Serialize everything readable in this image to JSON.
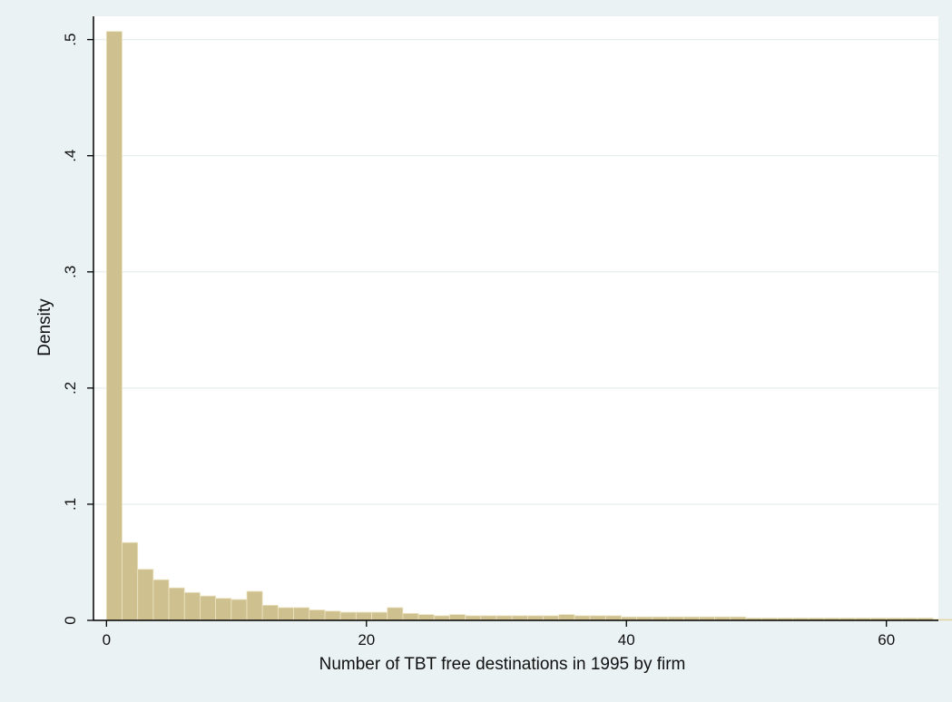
{
  "chart_data": {
    "type": "bar",
    "title": "",
    "xlabel": "Number of TBT free destinations in 1995 by firm",
    "ylabel": "Density",
    "xlim": [
      -1,
      64
    ],
    "ylim": [
      0,
      0.52
    ],
    "x_ticks": [
      {
        "value": 0,
        "label": "0"
      },
      {
        "value": 20,
        "label": "20"
      },
      {
        "value": 40,
        "label": "40"
      },
      {
        "value": 60,
        "label": "60"
      }
    ],
    "y_ticks": [
      {
        "value": 0,
        "label": "0"
      },
      {
        "value": 0.1,
        "label": ".1"
      },
      {
        "value": 0.2,
        "label": ".2"
      },
      {
        "value": 0.3,
        "label": ".3"
      },
      {
        "value": 0.4,
        "label": ".4"
      },
      {
        "value": 0.5,
        "label": ".5"
      }
    ],
    "bin_start": 0,
    "bin_width": 1.2,
    "values": [
      0.507,
      0.067,
      0.044,
      0.035,
      0.028,
      0.024,
      0.021,
      0.019,
      0.018,
      0.025,
      0.013,
      0.011,
      0.011,
      0.009,
      0.008,
      0.007,
      0.007,
      0.007,
      0.011,
      0.006,
      0.005,
      0.004,
      0.005,
      0.004,
      0.004,
      0.004,
      0.004,
      0.004,
      0.004,
      0.005,
      0.004,
      0.004,
      0.004,
      0.003,
      0.003,
      0.003,
      0.003,
      0.003,
      0.003,
      0.003,
      0.003,
      0.002,
      0.002,
      0.002,
      0.002,
      0.002,
      0.002,
      0.002,
      0.002,
      0.002,
      0.002,
      0.002,
      0.002,
      0.001,
      0.001,
      0.001,
      0.001,
      0.001,
      0.001,
      0.001,
      0.001,
      0.001,
      0.002
    ],
    "grid": true,
    "legend": "none",
    "colors": {
      "bar_fill": "#cfc18f",
      "bar_stroke": "#ece4c3",
      "background": "#eaf2f3",
      "plot_background": "#ffffff",
      "grid": "#e6efee",
      "axis": "#000000"
    }
  }
}
